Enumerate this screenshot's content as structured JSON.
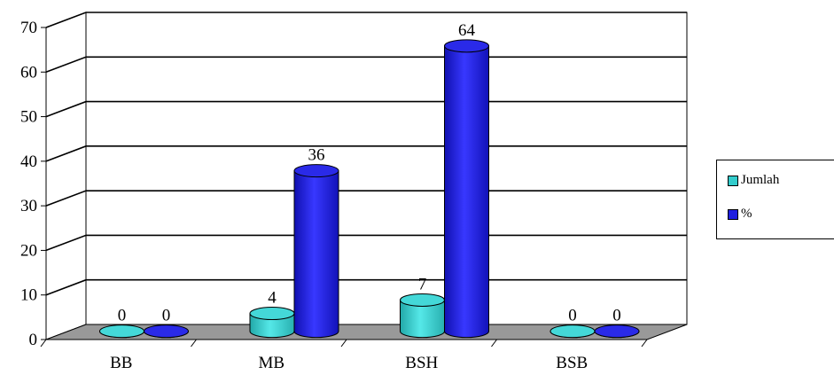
{
  "chart_data": {
    "type": "bar",
    "style": "3d-cylinder",
    "categories": [
      "BB",
      "MB",
      "BSH",
      "BSB"
    ],
    "series": [
      {
        "name": "Jumlah",
        "values": [
          0,
          4,
          7,
          0
        ],
        "color": "#33CCCC",
        "data_labels": [
          "0",
          "4",
          "7",
          "0"
        ]
      },
      {
        "name": "%",
        "values": [
          0,
          36,
          64,
          0
        ],
        "color": "#1F1FE0",
        "data_labels": [
          "0",
          "36",
          "64",
          "0"
        ]
      }
    ],
    "y_ticks": [
      "0",
      "10",
      "20",
      "30",
      "40",
      "50",
      "60",
      "70"
    ],
    "ylim": [
      0,
      70
    ],
    "grid": true,
    "legend_position": "right",
    "floor_color": "#999999",
    "title": "",
    "xlabel": "",
    "ylabel": ""
  },
  "legend": {
    "items": [
      {
        "label": "Jumlah",
        "color": "#33CCCC"
      },
      {
        "label": "%",
        "color": "#1F1FE0"
      }
    ]
  }
}
